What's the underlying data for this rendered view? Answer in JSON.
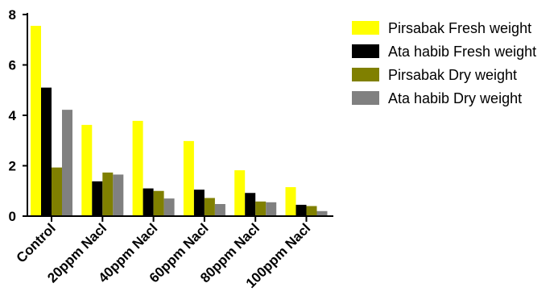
{
  "chart_data": {
    "type": "bar",
    "categories": [
      "Control",
      "20ppm Nacl",
      "40ppm Nacl",
      "60ppm Nacl",
      "80ppm Nacl",
      "100ppm Nacl"
    ],
    "series": [
      {
        "name": "Pirsabak Fresh weight",
        "color": "#ffff00",
        "values": [
          7.55,
          3.62,
          3.78,
          2.98,
          1.82,
          1.15
        ]
      },
      {
        "name": "Ata habib Fresh weight",
        "color": "#000000",
        "values": [
          5.1,
          1.38,
          1.1,
          1.05,
          0.92,
          0.45
        ]
      },
      {
        "name": "Pirsabak Dry weight",
        "color": "#808000",
        "values": [
          1.93,
          1.73,
          1.0,
          0.72,
          0.58,
          0.4
        ]
      },
      {
        "name": "Ata habib Dry weight",
        "color": "#808080",
        "values": [
          4.22,
          1.65,
          0.7,
          0.48,
          0.55,
          0.2
        ]
      }
    ],
    "yticks": [
      "0",
      "2",
      "4",
      "6",
      "8"
    ],
    "ylim": [
      0,
      8
    ],
    "legend_position": "top-right",
    "grid": false
  }
}
